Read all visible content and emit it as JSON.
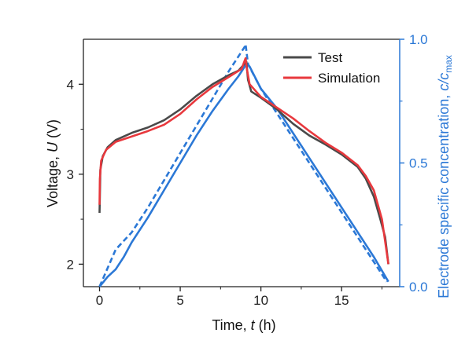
{
  "chart_data": {
    "type": "line",
    "x_axis": {
      "label_prefix": "Time, ",
      "label_var": "t",
      "label_unit": " (h)",
      "range": [
        -1,
        18.6
      ],
      "ticks": [
        0,
        5,
        10,
        15
      ],
      "tick_labels": [
        "0",
        "5",
        "10",
        "15"
      ]
    },
    "y_axis_left": {
      "label_prefix": "Voltage, ",
      "label_var": "U",
      "label_unit": " (V)",
      "range": [
        1.75,
        4.5
      ],
      "ticks": [
        2,
        3,
        4
      ],
      "tick_labels": [
        "2",
        "3",
        "4"
      ]
    },
    "y_axis_right": {
      "label_prefix": "Electrode specific concentration, ",
      "label_var": "c/c",
      "label_sub": "max",
      "range": [
        0,
        1.0
      ],
      "ticks": [
        0.0,
        0.5,
        1.0
      ],
      "tick_labels": [
        "0.0",
        "0.5",
        "1.0"
      ],
      "color": "#2b78d6"
    },
    "legend": {
      "position": "top-right",
      "entries": [
        {
          "label": "Test",
          "color": "#4a4a4a"
        },
        {
          "label": "Simulation",
          "color": "#e8383d"
        }
      ]
    },
    "series": [
      {
        "name": "Test",
        "axis": "left",
        "color": "#4a4a4a",
        "style": "solid",
        "points": [
          [
            0,
            2.57
          ],
          [
            0.02,
            2.75
          ],
          [
            0.05,
            3.05
          ],
          [
            0.2,
            3.2
          ],
          [
            0.5,
            3.3
          ],
          [
            1,
            3.38
          ],
          [
            2,
            3.46
          ],
          [
            3,
            3.52
          ],
          [
            4,
            3.6
          ],
          [
            5,
            3.72
          ],
          [
            6,
            3.87
          ],
          [
            7,
            4.0
          ],
          [
            8,
            4.1
          ],
          [
            8.6,
            4.15
          ],
          [
            9.0,
            4.23
          ],
          [
            9.1,
            4.25
          ],
          [
            9.2,
            4.05
          ],
          [
            9.4,
            3.92
          ],
          [
            10,
            3.85
          ],
          [
            11,
            3.72
          ],
          [
            12,
            3.56
          ],
          [
            13,
            3.43
          ],
          [
            14,
            3.33
          ],
          [
            15,
            3.22
          ],
          [
            16,
            3.08
          ],
          [
            16.5,
            2.95
          ],
          [
            17,
            2.75
          ],
          [
            17.4,
            2.5
          ],
          [
            17.7,
            2.3
          ],
          [
            17.9,
            2.0
          ]
        ]
      },
      {
        "name": "Simulation",
        "axis": "left",
        "color": "#e8383d",
        "style": "solid",
        "points": [
          [
            0,
            2.66
          ],
          [
            0.02,
            2.95
          ],
          [
            0.1,
            3.15
          ],
          [
            0.4,
            3.27
          ],
          [
            1,
            3.36
          ],
          [
            2,
            3.42
          ],
          [
            3,
            3.48
          ],
          [
            4,
            3.55
          ],
          [
            5,
            3.67
          ],
          [
            6,
            3.83
          ],
          [
            7,
            3.97
          ],
          [
            8,
            4.08
          ],
          [
            8.8,
            4.17
          ],
          [
            9.05,
            4.29
          ],
          [
            9.12,
            4.18
          ],
          [
            9.3,
            4.0
          ],
          [
            10,
            3.86
          ],
          [
            11,
            3.74
          ],
          [
            12,
            3.62
          ],
          [
            13,
            3.48
          ],
          [
            14,
            3.35
          ],
          [
            15,
            3.24
          ],
          [
            16,
            3.1
          ],
          [
            16.5,
            2.98
          ],
          [
            17,
            2.82
          ],
          [
            17.5,
            2.5
          ],
          [
            17.9,
            2.0
          ]
        ]
      },
      {
        "name": "",
        "axis": "right",
        "color": "#2b78d6",
        "style": "solid",
        "points": [
          [
            0,
            0.0
          ],
          [
            0.5,
            0.04
          ],
          [
            1,
            0.07
          ],
          [
            1.5,
            0.12
          ],
          [
            2,
            0.18
          ],
          [
            3,
            0.28
          ],
          [
            4,
            0.39
          ],
          [
            5,
            0.5
          ],
          [
            6,
            0.61
          ],
          [
            7,
            0.71
          ],
          [
            8,
            0.8
          ],
          [
            8.6,
            0.85
          ],
          [
            9.0,
            0.89
          ],
          [
            9.1,
            0.9
          ],
          [
            9.3,
            0.89
          ],
          [
            10,
            0.8
          ],
          [
            11,
            0.72
          ],
          [
            12,
            0.62
          ],
          [
            13,
            0.52
          ],
          [
            14,
            0.42
          ],
          [
            15,
            0.32
          ],
          [
            16,
            0.22
          ],
          [
            17,
            0.12
          ],
          [
            17.9,
            0.02
          ]
        ]
      },
      {
        "name": "",
        "axis": "right",
        "color": "#2b78d6",
        "style": "dashed",
        "points": [
          [
            0,
            0.0
          ],
          [
            0.4,
            0.06
          ],
          [
            1,
            0.15
          ],
          [
            2,
            0.22
          ],
          [
            3,
            0.32
          ],
          [
            4,
            0.43
          ],
          [
            5,
            0.54
          ],
          [
            6,
            0.65
          ],
          [
            7,
            0.76
          ],
          [
            8,
            0.87
          ],
          [
            9,
            0.97
          ],
          [
            9.05,
            0.98
          ],
          [
            9.2,
            0.9
          ],
          [
            10,
            0.8
          ],
          [
            11,
            0.7
          ],
          [
            12,
            0.6
          ],
          [
            13,
            0.5
          ],
          [
            14,
            0.4
          ],
          [
            15,
            0.3
          ],
          [
            16,
            0.2
          ],
          [
            17,
            0.1
          ],
          [
            17.8,
            0.02
          ]
        ]
      }
    ]
  }
}
